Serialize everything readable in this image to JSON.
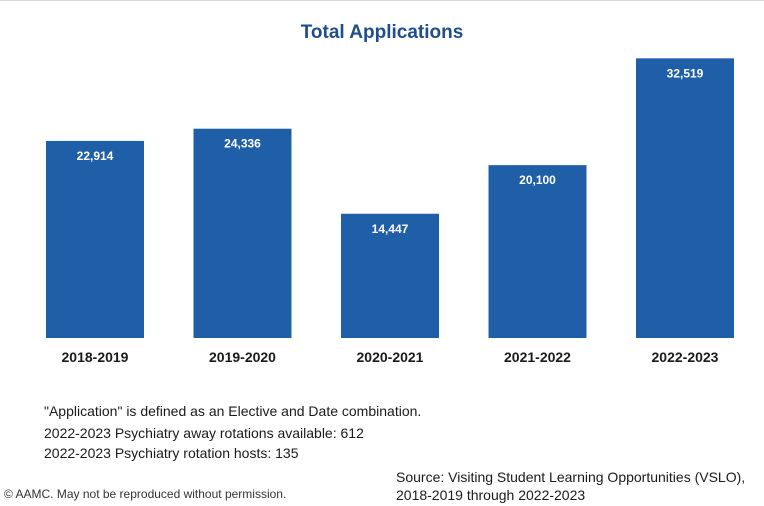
{
  "chart_data": {
    "type": "bar",
    "title": "Total Applications",
    "categories": [
      "2018-2019",
      "2019-2020",
      "2020-2021",
      "2021-2022",
      "2022-2023"
    ],
    "values": [
      22914,
      24336,
      14447,
      20100,
      32519
    ],
    "value_labels": [
      "22,914",
      "24,336",
      "14,447",
      "20,100",
      "32,519"
    ],
    "bar_color": "#1f5fa8",
    "label_color": "#ffffff",
    "ylim": [
      0,
      35000
    ],
    "grid": false,
    "legend": "none"
  },
  "notes": {
    "definition": "\"Application\" is defined as an Elective and Date combination.",
    "away_rotations": "2022-2023  Psychiatry away rotations available: 612",
    "rotation_hosts": "2022-2023  Psychiatry rotation hosts: 135"
  },
  "footer": {
    "copyright": "© AAMC. May not be reproduced without permission.",
    "source_line1": "Source: Visiting Student Learning Opportunities (VSLO),",
    "source_line2": "2018-2019 through 2022-2023"
  }
}
